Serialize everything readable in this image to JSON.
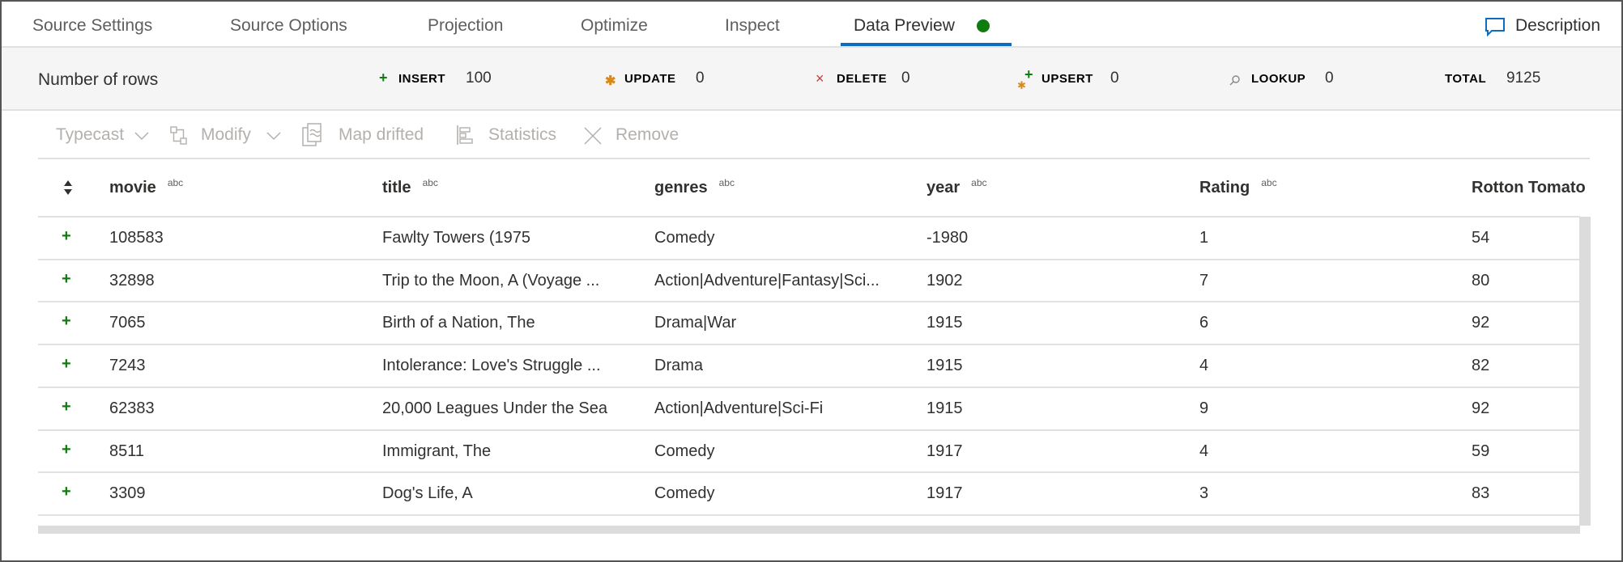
{
  "tabs": [
    {
      "label": "Source Settings"
    },
    {
      "label": "Source Options"
    },
    {
      "label": "Projection"
    },
    {
      "label": "Optimize"
    },
    {
      "label": "Inspect"
    },
    {
      "label": "Data Preview",
      "active": true,
      "status_color": "#107c10"
    }
  ],
  "description_label": "Description",
  "row_counts": {
    "label": "Number of rows",
    "insert": {
      "label": "INSERT",
      "value": "100"
    },
    "update": {
      "label": "UPDATE",
      "value": "0"
    },
    "delete": {
      "label": "DELETE",
      "value": "0"
    },
    "upsert": {
      "label": "UPSERT",
      "value": "0"
    },
    "lookup": {
      "label": "LOOKUP",
      "value": "0"
    },
    "total": {
      "label": "TOTAL",
      "value": "9125"
    }
  },
  "toolbar": {
    "typecast": "Typecast",
    "modify": "Modify",
    "map_drifted": "Map drifted",
    "statistics": "Statistics",
    "remove": "Remove"
  },
  "table": {
    "type_badge": "abc",
    "columns": [
      "movie",
      "title",
      "genres",
      "year",
      "Rating",
      "Rotton Tomato"
    ],
    "rows": [
      [
        "108583",
        "Fawlty Towers (1975",
        "Comedy",
        "-1980",
        "1",
        "54"
      ],
      [
        "32898",
        "Trip to the Moon, A (Voyage ...",
        "Action|Adventure|Fantasy|Sci...",
        "1902",
        "7",
        "80"
      ],
      [
        "7065",
        "Birth of a Nation, The",
        "Drama|War",
        "1915",
        "6",
        "92"
      ],
      [
        "7243",
        "Intolerance: Love's Struggle ...",
        "Drama",
        "1915",
        "4",
        "82"
      ],
      [
        "62383",
        "20,000 Leagues Under the Sea",
        "Action|Adventure|Sci-Fi",
        "1915",
        "9",
        "92"
      ],
      [
        "8511",
        "Immigrant, The",
        "Comedy",
        "1917",
        "4",
        "59"
      ],
      [
        "3309",
        "Dog's Life, A",
        "Comedy",
        "1917",
        "3",
        "83"
      ]
    ]
  },
  "colors": {
    "accent": "#0f6cbd",
    "insert": "#107c10",
    "update": "#d68a1c",
    "delete": "#d13438"
  }
}
